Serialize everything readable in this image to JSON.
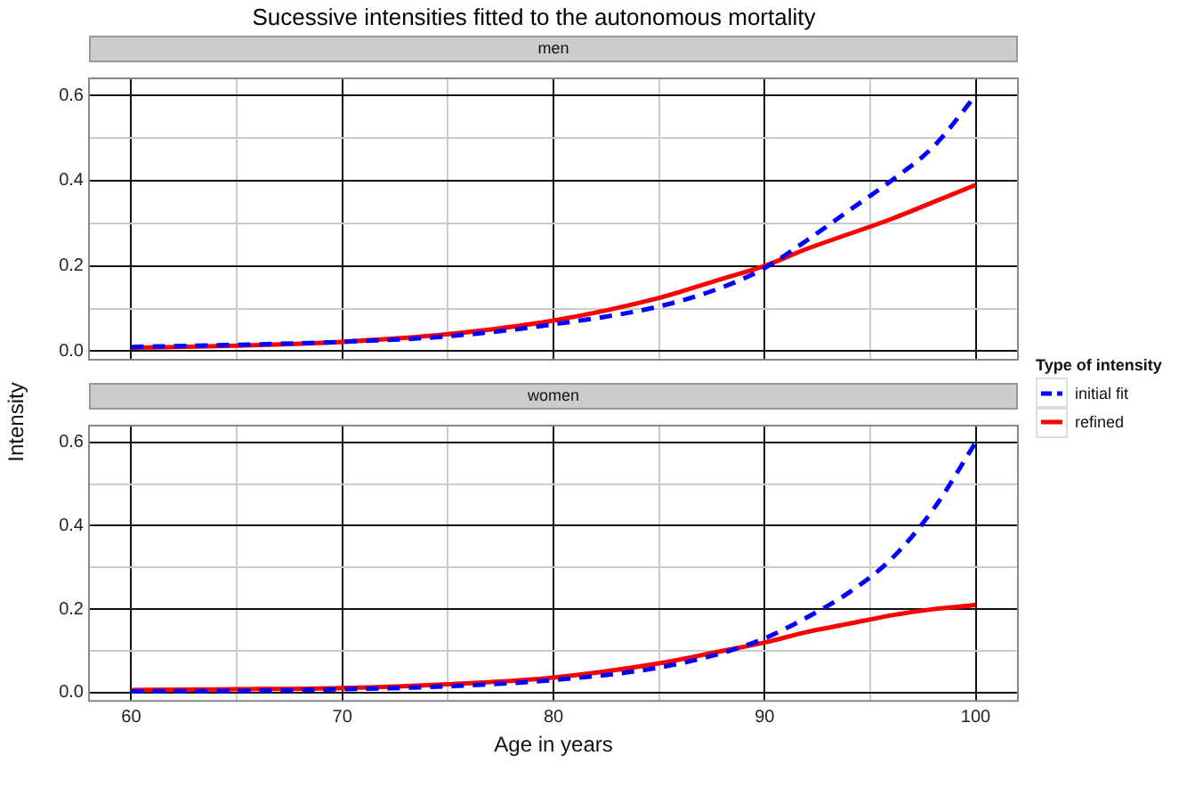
{
  "chart_data": [
    {
      "type": "line",
      "title": "Sucessive intensities fitted to the autonomous mortality",
      "subtitle": "men",
      "ylabel": "Intensity",
      "legend": "right",
      "legend_title": "Type of intensity",
      "grid": true,
      "tick_labels": "y",
      "x": [
        60,
        65,
        70,
        75,
        80,
        85,
        88,
        90,
        92,
        94,
        96,
        98,
        100
      ],
      "xlim": [
        58,
        102
      ],
      "xticks": [
        60,
        {
          "value": 65,
          "label": null
        },
        70,
        {
          "value": 75,
          "label": null
        },
        80,
        {
          "value": 85,
          "label": null
        },
        90,
        {
          "value": 95,
          "label": null
        },
        100
      ],
      "ylim": [
        -0.02,
        0.64
      ],
      "yticks": [
        {
          "value": 0,
          "label": "0.0"
        },
        {
          "value": 0.1,
          "label": null
        },
        0.2,
        {
          "value": 0.3,
          "label": null
        },
        0.4,
        {
          "value": 0.5,
          "label": null
        },
        0.6
      ],
      "series": [
        {
          "name": "initial fit",
          "color": "#0000ff",
          "line_style": "dashed",
          "values": [
            0.01,
            0.015,
            0.022,
            0.035,
            0.063,
            0.105,
            0.15,
            0.195,
            0.26,
            0.33,
            0.4,
            0.48,
            0.6
          ]
        },
        {
          "name": "refined",
          "color": "#ff0000",
          "line_style": "solid",
          "values": [
            0.008,
            0.013,
            0.022,
            0.04,
            0.072,
            0.125,
            0.17,
            0.2,
            0.24,
            0.275,
            0.31,
            0.35,
            0.39
          ]
        }
      ]
    },
    {
      "type": "line",
      "subtitle": "women",
      "xlabel": "Age in years",
      "grid": true,
      "x": [
        60,
        65,
        70,
        75,
        80,
        85,
        88,
        90,
        92,
        94,
        96,
        98,
        100
      ],
      "xlim": [
        58,
        102
      ],
      "xticks": [
        60,
        {
          "value": 65,
          "label": null
        },
        70,
        {
          "value": 75,
          "label": null
        },
        80,
        {
          "value": 85,
          "label": null
        },
        90,
        {
          "value": 95,
          "label": null
        },
        100
      ],
      "ylim": [
        -0.02,
        0.64
      ],
      "yticks": [
        {
          "value": 0,
          "label": "0.0"
        },
        {
          "value": 0.1,
          "label": null
        },
        0.2,
        {
          "value": 0.3,
          "label": null
        },
        0.4,
        {
          "value": 0.5,
          "label": null
        },
        0.6
      ],
      "series": [
        {
          "color": "#0000ff",
          "line_style": "dashed",
          "values": [
            0.003,
            0.004,
            0.008,
            0.015,
            0.03,
            0.06,
            0.095,
            0.13,
            0.18,
            0.24,
            0.32,
            0.44,
            0.6
          ]
        },
        {
          "color": "#ff0000",
          "line_style": "solid",
          "values": [
            0.006,
            0.008,
            0.011,
            0.02,
            0.036,
            0.07,
            0.1,
            0.12,
            0.145,
            0.165,
            0.185,
            0.2,
            0.21
          ]
        }
      ]
    }
  ]
}
